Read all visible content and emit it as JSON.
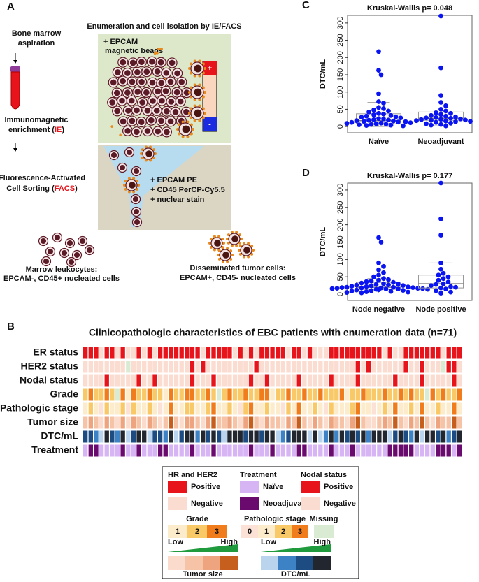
{
  "panel_a": {
    "label": "A",
    "title": "Enumeration and cell isolation by IE/FACS",
    "step1": [
      "Bone marrow",
      "aspiration"
    ],
    "step2": {
      "line1": "Immunomagnetic",
      "line2": [
        "enrichment (",
        "IE",
        ")"
      ]
    },
    "step3": {
      "line1": "Fluorescence-Activated",
      "line2": [
        "Cell Sorting (",
        "FACS",
        ")"
      ]
    },
    "beads": [
      "+ EPCAM",
      "magnetic beads"
    ],
    "magnet": [
      "+",
      "-"
    ],
    "stains": [
      "+ EPCAM PE",
      "+ CD45 PerCP-Cy5.5",
      "+ nuclear stain"
    ],
    "leukocytes": [
      "Marrow leukocytes:",
      "EPCAM-, CD45+ nucleated cells"
    ],
    "tumor_cells": [
      "Disseminated tumor cells:",
      "EPCAM+, CD45- nucleated cells"
    ]
  },
  "chart_data": [
    {
      "type": "strip",
      "label": "C",
      "title": "Kruskal-Wallis p= 0.048",
      "ylabel": "DTC/mL",
      "color": "#0a14f0",
      "categories": [
        "Naïve",
        "Neoadjuvant"
      ],
      "values": [
        [
          217,
          163,
          150,
          95,
          72,
          68,
          55,
          52,
          48,
          45,
          42,
          38,
          36,
          34,
          32,
          30,
          28,
          27,
          25,
          23,
          22,
          20,
          19,
          18,
          17,
          16,
          15,
          14,
          13,
          12,
          11,
          10,
          9,
          8,
          7,
          6,
          5,
          4,
          3,
          2
        ],
        [
          320,
          170,
          90,
          70,
          60,
          50,
          45,
          40,
          38,
          35,
          32,
          30,
          28,
          26,
          25,
          24,
          22,
          21,
          20,
          19,
          18,
          17,
          16,
          15,
          14,
          12,
          10,
          8,
          6,
          4,
          2
        ]
      ],
      "box": [
        {
          "whisker_low": 0,
          "q1": 8,
          "median": 17,
          "q3": 37,
          "whisker_high": 70
        },
        {
          "whisker_low": 2,
          "q1": 18,
          "median": 24,
          "q3": 42,
          "whisker_high": 68
        }
      ],
      "ylim": [
        -18,
        322
      ],
      "yticks": [
        0,
        50,
        100,
        150,
        200,
        250,
        300
      ]
    },
    {
      "type": "strip",
      "label": "D",
      "title": "Kruskal-Wallis p= 0.177",
      "ylabel": "DTC/mL",
      "color": "#0a14f0",
      "categories": [
        "Node negative",
        "Node positive"
      ],
      "values": [
        [
          163,
          150,
          90,
          80,
          70,
          62,
          55,
          50,
          45,
          42,
          40,
          38,
          36,
          34,
          32,
          30,
          29,
          28,
          27,
          26,
          25,
          24,
          23,
          22,
          21,
          20,
          20,
          19,
          19,
          18,
          18,
          17,
          17,
          16,
          16,
          15,
          15,
          14,
          14,
          13,
          13,
          12,
          11,
          10,
          9,
          8,
          7,
          6,
          5,
          4
        ],
        [
          320,
          217,
          170,
          90,
          72,
          60,
          55,
          50,
          45,
          40,
          35,
          30,
          28,
          25,
          22,
          20,
          18,
          15,
          10,
          6,
          3
        ]
      ],
      "box": [
        {
          "whisker_low": 3,
          "q1": 14,
          "median": 20,
          "q3": 34,
          "whisker_high": 45
        },
        {
          "whisker_low": 3,
          "q1": 18,
          "median": 30,
          "q3": 55,
          "whisker_high": 90
        }
      ],
      "ylim": [
        -18,
        320
      ],
      "yticks": [
        0,
        50,
        100,
        150,
        200,
        250,
        300
      ]
    }
  ],
  "panel_b": {
    "label": "B",
    "title": "Clinicopathologic characteristics of EBC patients with enumeration data (n=71)",
    "rows": [
      {
        "label": "ER status",
        "values": [
          1,
          1,
          1,
          0,
          1,
          1,
          0,
          1,
          0,
          0,
          1,
          0,
          1,
          0,
          1,
          1,
          1,
          1,
          1,
          1,
          1,
          1,
          0,
          1,
          1,
          1,
          1,
          1,
          0,
          1,
          0,
          1,
          0,
          1,
          1,
          1,
          1,
          1,
          0,
          1,
          1,
          0,
          1,
          0,
          0,
          0,
          1,
          1,
          1,
          1,
          1,
          1,
          1,
          1,
          1,
          1,
          0,
          1,
          0,
          0,
          1,
          1,
          1,
          1,
          1,
          1,
          1,
          0,
          1,
          1,
          1
        ]
      },
      {
        "label": "HER2 status",
        "values": [
          0,
          0,
          0,
          0,
          0,
          0,
          0,
          0,
          null,
          0,
          0,
          0,
          0,
          0,
          0,
          0,
          0,
          0,
          0,
          0,
          1,
          0,
          1,
          0,
          0,
          0,
          0,
          0,
          0,
          0,
          0,
          0,
          1,
          0,
          0,
          0,
          0,
          0,
          0,
          0,
          0,
          0,
          0,
          0,
          0,
          0,
          0,
          0,
          0,
          0,
          0,
          1,
          0,
          1,
          0,
          0,
          0,
          0,
          0,
          0,
          1,
          0,
          0,
          1,
          0,
          0,
          0,
          null,
          1,
          1,
          0
        ]
      },
      {
        "label": "Nodal status",
        "values": [
          0,
          0,
          0,
          0,
          1,
          0,
          0,
          0,
          0,
          0,
          1,
          0,
          0,
          1,
          0,
          0,
          0,
          0,
          0,
          0,
          1,
          0,
          0,
          0,
          1,
          0,
          0,
          0,
          0,
          0,
          0,
          1,
          0,
          0,
          1,
          0,
          0,
          0,
          0,
          0,
          1,
          0,
          0,
          0,
          0,
          0,
          1,
          0,
          0,
          0,
          0,
          1,
          0,
          0,
          0,
          0,
          0,
          0,
          1,
          0,
          0,
          0,
          0,
          1,
          0,
          0,
          0,
          0,
          0,
          1,
          0
        ]
      },
      {
        "label": "Grade",
        "values": [
          2,
          3,
          2,
          2,
          3,
          2,
          null,
          3,
          1,
          3,
          2,
          2,
          3,
          2,
          2,
          1,
          3,
          2,
          2,
          3,
          3,
          2,
          2,
          3,
          2,
          null,
          2,
          3,
          2,
          2,
          3,
          2,
          2,
          3,
          3,
          1,
          2,
          2,
          3,
          2,
          2,
          3,
          2,
          2,
          3,
          2,
          2,
          2,
          3,
          1,
          2,
          2,
          3,
          2,
          2,
          2,
          3,
          2,
          2,
          3,
          2,
          3,
          2,
          2,
          null,
          3,
          2,
          3,
          2,
          2,
          3
        ]
      },
      {
        "label": "Pathologic stage",
        "values": [
          1,
          2,
          1,
          0,
          2,
          1,
          1,
          2,
          0,
          2,
          1,
          1,
          2,
          1,
          0,
          1,
          3,
          1,
          1,
          2,
          2,
          1,
          1,
          2,
          3,
          1,
          1,
          2,
          1,
          0,
          2,
          3,
          1,
          1,
          2,
          1,
          1,
          0,
          2,
          1,
          3,
          1,
          1,
          2,
          1,
          0,
          2,
          1,
          1,
          1,
          2,
          3,
          1,
          1,
          0,
          1,
          2,
          1,
          3,
          1,
          1,
          2,
          1,
          3,
          1,
          1,
          2,
          1,
          1,
          3,
          1
        ]
      },
      {
        "label": "Tumor size",
        "values": [
          1,
          2,
          1,
          0,
          2,
          1,
          0,
          2,
          0,
          2,
          1,
          0,
          2,
          1,
          0,
          1,
          3,
          1,
          0,
          2,
          2,
          1,
          0,
          2,
          3,
          1,
          1,
          2,
          1,
          0,
          2,
          3,
          1,
          0,
          2,
          1,
          1,
          0,
          2,
          1,
          3,
          1,
          0,
          2,
          1,
          0,
          2,
          1,
          1,
          0,
          2,
          3,
          1,
          0,
          0,
          1,
          2,
          1,
          3,
          1,
          0,
          2,
          1,
          3,
          1,
          0,
          2,
          1,
          1,
          3,
          1
        ]
      },
      {
        "label": "DTC/mL",
        "values": [
          2,
          2,
          1,
          0,
          3,
          2,
          1,
          3,
          0,
          2,
          3,
          3,
          0,
          2,
          2,
          1,
          3,
          0,
          2,
          3,
          3,
          1,
          3,
          2,
          3,
          2,
          0,
          3,
          3,
          3,
          2,
          3,
          3,
          2,
          3,
          3,
          0,
          1,
          2,
          3,
          3,
          3,
          0,
          3,
          0,
          1,
          3,
          1,
          3,
          2,
          3,
          2,
          3,
          1,
          3,
          3,
          3,
          0,
          2,
          3,
          2,
          1,
          3,
          0,
          3,
          3,
          2,
          3,
          1,
          2,
          3
        ]
      },
      {
        "label": "Treatment",
        "values": [
          0,
          1,
          1,
          0,
          0,
          0,
          0,
          1,
          0,
          0,
          1,
          0,
          0,
          0,
          1,
          1,
          0,
          0,
          0,
          0,
          1,
          0,
          0,
          0,
          1,
          0,
          0,
          0,
          0,
          0,
          0,
          1,
          0,
          0,
          0,
          1,
          0,
          0,
          0,
          0,
          1,
          1,
          0,
          0,
          0,
          0,
          1,
          0,
          0,
          0,
          1,
          0,
          0,
          0,
          0,
          0,
          0,
          1,
          1,
          1,
          1,
          1,
          0,
          0,
          0,
          0,
          1,
          1,
          1,
          0,
          1
        ]
      }
    ],
    "legend": {
      "hr_her2": {
        "title": "HR and HER2",
        "items": [
          {
            "label": "Positive",
            "color": "#e8141b"
          },
          {
            "label": "Negative",
            "color": "#fbdcd1"
          }
        ]
      },
      "treatment": {
        "title": "Treatment",
        "items": [
          {
            "label": "Naïve",
            "color": "#d7b5f5"
          },
          {
            "label": "Neoadjuvant",
            "color": "#6b0a6e"
          }
        ]
      },
      "nodal": {
        "title": "Nodal status",
        "items": [
          {
            "label": "Positive",
            "color": "#e8141b"
          },
          {
            "label": "Negative",
            "color": "#fbdcd1"
          }
        ]
      },
      "grade": {
        "title": "Grade",
        "items": [
          {
            "label": "1",
            "color": "#fdeccb"
          },
          {
            "label": "2",
            "color": "#f9c968"
          },
          {
            "label": "3",
            "color": "#f07c1c"
          }
        ]
      },
      "stage": {
        "title": "Pathologic stage",
        "items": [
          {
            "label": "0",
            "color": "#fbe1d6"
          },
          {
            "label": "1",
            "color": "#fdeccb"
          },
          {
            "label": "2",
            "color": "#f9c968"
          },
          {
            "label": "3",
            "color": "#f07c1c"
          }
        ]
      },
      "missing": {
        "title": "Missing",
        "color": "#d9ecd3"
      },
      "tumor_size": {
        "title": "Tumor size",
        "low": "Low",
        "high": "High",
        "colors": [
          "#fbdccc",
          "#f6c3a7",
          "#eea57f",
          "#c65f1d"
        ]
      },
      "dtc": {
        "title": "DTC/mL",
        "low": "Low",
        "high": "High",
        "colors": [
          "#b9d4ec",
          "#3d82c4",
          "#1d4c82",
          "#22272f"
        ]
      }
    }
  }
}
